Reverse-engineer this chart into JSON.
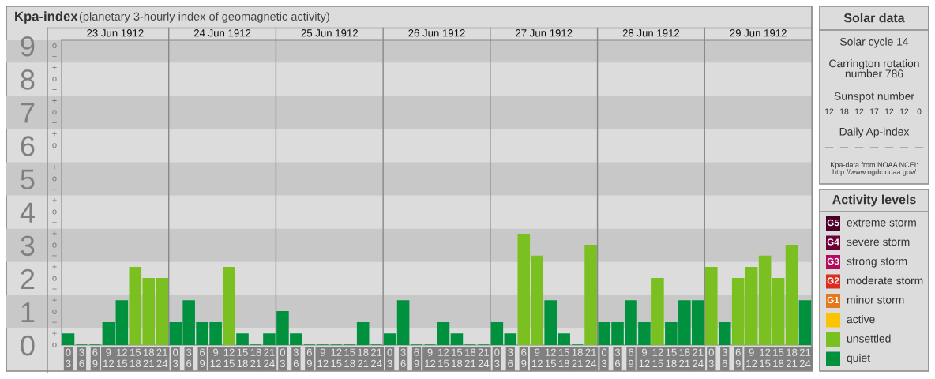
{
  "chart_data": [
    {
      "type": "bar",
      "title": "Kpa-index",
      "subtitle": "(planetary 3-hourly index of geomagnetic activity)",
      "categories": [
        "0\n3",
        "3\n6",
        "6\n9",
        "9\n12",
        "12\n15",
        "15\n18",
        "18\n21",
        "21\n24",
        "0\n3",
        "3\n6",
        "6\n9",
        "9\n12",
        "12\n15",
        "15\n18",
        "18\n21",
        "21\n24",
        "0\n3",
        "3\n6",
        "6\n9",
        "9\n12",
        "12\n15",
        "15\n18",
        "18\n21",
        "21\n24",
        "0\n3",
        "3\n6",
        "6\n9",
        "9\n12",
        "12\n15",
        "15\n18",
        "18\n21",
        "21\n24",
        "0\n3",
        "3\n6",
        "6\n9",
        "9\n12",
        "12\n15",
        "15\n18",
        "18\n21",
        "21\n24",
        "0\n3",
        "3\n6",
        "6\n9",
        "9\n12",
        "12\n15",
        "15\n18",
        "18\n21",
        "21\n24",
        "0\n3",
        "3\n6",
        "6\n9",
        "9\n12",
        "12\n15",
        "15\n18",
        "18\n21",
        "21\n24"
      ],
      "values": [
        0.33,
        0,
        0,
        0.67,
        1.33,
        2.33,
        2.0,
        2.0,
        0.67,
        1.33,
        0.67,
        0.67,
        2.33,
        0.33,
        0,
        0.33,
        1.0,
        0.33,
        0,
        0,
        0,
        0,
        0.67,
        0,
        0.33,
        1.33,
        0,
        0,
        0.67,
        0.33,
        0,
        0,
        0.67,
        0.33,
        3.33,
        2.67,
        1.33,
        0.33,
        0,
        3.0,
        0.67,
        0.67,
        1.33,
        0.67,
        2.0,
        0.67,
        1.33,
        1.33,
        2.33,
        0.67,
        2.0,
        2.33,
        2.67,
        2.0,
        3.0,
        1.33
      ],
      "colors": [
        "#00913f",
        "#00913f",
        "#00913f",
        "#00913f",
        "#00913f",
        "#7ac020",
        "#7ac020",
        "#7ac020",
        "#00913f",
        "#00913f",
        "#00913f",
        "#00913f",
        "#7ac020",
        "#00913f",
        "#00913f",
        "#00913f",
        "#00913f",
        "#00913f",
        "#00913f",
        "#00913f",
        "#00913f",
        "#00913f",
        "#00913f",
        "#00913f",
        "#00913f",
        "#00913f",
        "#00913f",
        "#00913f",
        "#00913f",
        "#00913f",
        "#00913f",
        "#00913f",
        "#00913f",
        "#00913f",
        "#7ac020",
        "#7ac020",
        "#00913f",
        "#00913f",
        "#00913f",
        "#7ac020",
        "#00913f",
        "#00913f",
        "#00913f",
        "#00913f",
        "#7ac020",
        "#00913f",
        "#00913f",
        "#00913f",
        "#7ac020",
        "#00913f",
        "#7ac020",
        "#7ac020",
        "#7ac020",
        "#7ac020",
        "#7ac020",
        "#00913f"
      ],
      "annotations": [
        "23 Jun 1912",
        "24 Jun 1912",
        "25 Jun 1912",
        "26 Jun 1912",
        "27 Jun 1912",
        "28 Jun 1912",
        "29 Jun 1912",
        "o",
        "+",
        "−",
        "o",
        "+",
        "−",
        "o",
        "+",
        "−",
        "o",
        "+",
        "−",
        "o",
        "+",
        "−",
        "o",
        "+",
        "−",
        "o",
        "+",
        "−",
        "o",
        "+",
        "−",
        "o",
        "+",
        "−",
        "o"
      ],
      "ylim": [
        0,
        9.17
      ],
      "yticks": [
        0,
        1,
        2,
        3,
        4,
        5,
        6,
        7,
        8,
        9
      ],
      "grid": false
    },
    {
      "type": "other",
      "title": "Solar data",
      "annotations": [
        "Solar cycle 14",
        "Carrington rotation\nnumber 786",
        "Sunspot number",
        "Daily Ap-index",
        "—",
        "—",
        "—",
        "—",
        "—",
        "—",
        "—",
        "Kpa-data from NOAA NCEI:\nhttp://www.ngdc.noaa.gov/"
      ],
      "categories": [
        null,
        null,
        null,
        null,
        null,
        null,
        null
      ],
      "values": [
        12,
        18,
        12,
        17,
        12,
        12,
        0
      ],
      "data_labels": true
    },
    {
      "type": "other",
      "title": "Activity levels",
      "categories": [
        "extreme storm",
        "severe storm",
        "strong storm",
        "moderate storm",
        "minor storm",
        "active",
        "unsettled",
        "quiet"
      ],
      "colors": [
        "#4a0026",
        "#6e0039",
        "#b5095f",
        "#dc2e1f",
        "#e6771a",
        "#fbc400",
        "#7ac020",
        "#00913f"
      ],
      "value_labels": [
        "G5",
        "G4",
        "G3",
        "G2",
        "G1",
        null,
        null,
        null
      ]
    }
  ]
}
